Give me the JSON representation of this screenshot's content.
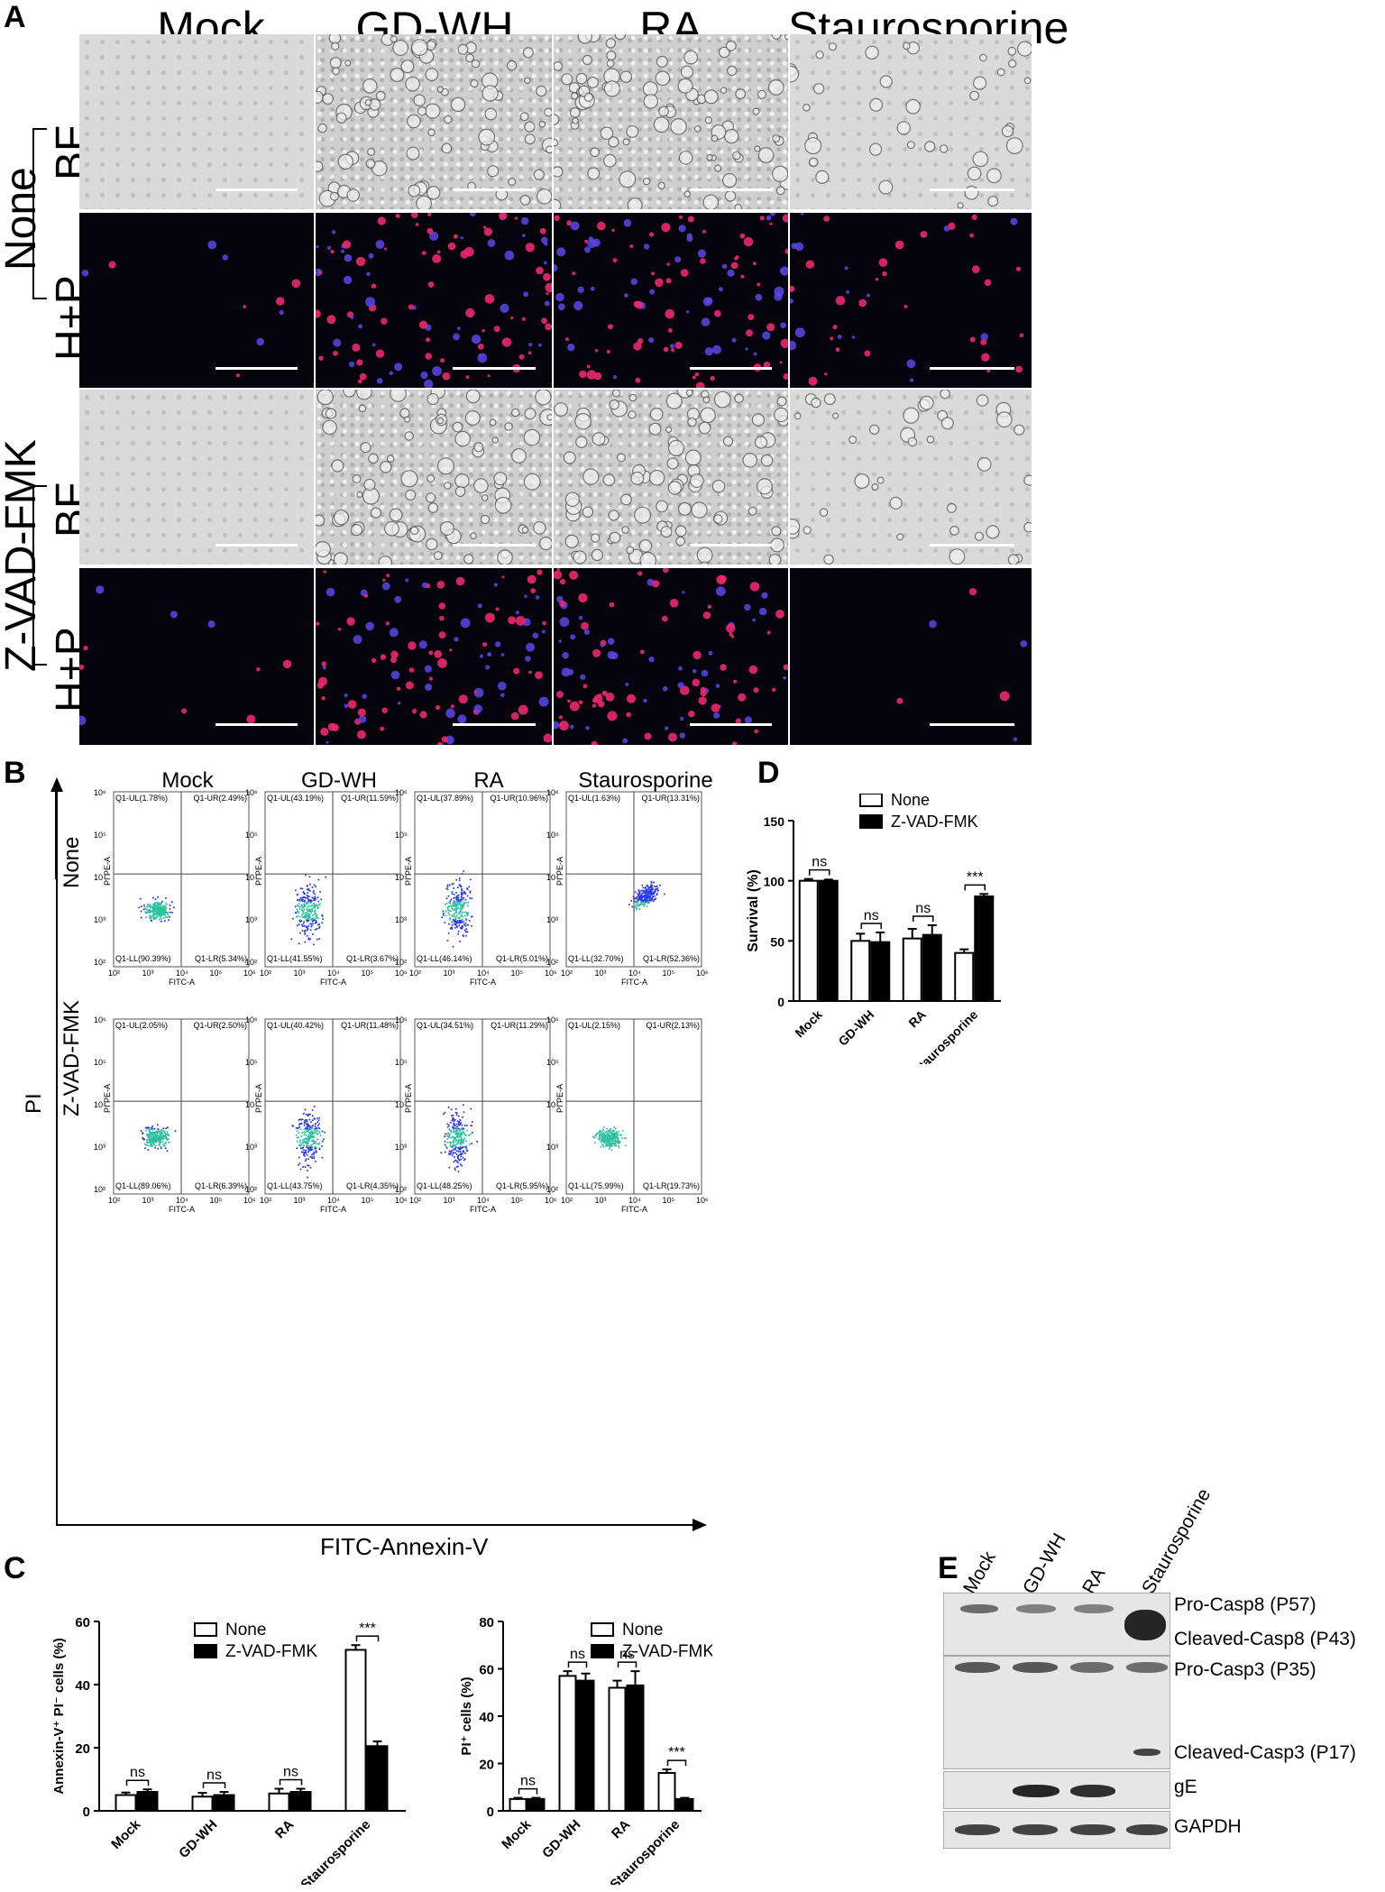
{
  "panel_a": {
    "label": "A",
    "columns": [
      "Mock",
      "GD-WH",
      "RA",
      "Staurosporine"
    ],
    "groups": [
      "None",
      "Z-VAD-FMK"
    ],
    "rows": [
      "BF",
      "H+P",
      "BF",
      "H+P"
    ]
  },
  "panel_b": {
    "label": "B",
    "columns": [
      "Mock",
      "GD-WH",
      "RA",
      "Staurosporine"
    ],
    "rows": [
      "None",
      "Z-VAD-FMK"
    ],
    "y_axis": "PI",
    "x_axis": "FITC-Annexin-V",
    "plot_xlabel": "FITC-A",
    "plot_ylabel": "PI PE-A",
    "x_ticks": [
      "10²",
      "10³",
      "10⁴",
      "10⁵",
      "10⁶"
    ],
    "y_ticks": [
      "10⁶",
      "10⁵",
      "10⁴",
      "10³",
      "10²"
    ],
    "quadrants": [
      [
        {
          "ul": "Q1-UL(1.78%)",
          "ur": "Q1-UR(2.49%)",
          "ll": "Q1-LL(90.39%)",
          "lr": "Q1-LR(5.34%)"
        },
        {
          "ul": "Q1-UL(43.19%)",
          "ur": "Q1-UR(11.59%)",
          "ll": "Q1-LL(41.55%)",
          "lr": "Q1-LR(3.67%)"
        },
        {
          "ul": "Q1-UL(37.89%)",
          "ur": "Q1-UR(10.96%)",
          "ll": "Q1-LL(46.14%)",
          "lr": "Q1-LR(5.01%)"
        },
        {
          "ul": "Q1-UL(1.63%)",
          "ur": "Q1-UR(13.31%)",
          "ll": "Q1-LL(32.70%)",
          "lr": "Q1-LR(52.36%)"
        }
      ],
      [
        {
          "ul": "Q1-UL(2.05%)",
          "ur": "Q1-UR(2.50%)",
          "ll": "Q1-LL(89.06%)",
          "lr": "Q1-LR(6.39%)"
        },
        {
          "ul": "Q1-UL(40.42%)",
          "ur": "Q1-UR(11.48%)",
          "ll": "Q1-LL(43.75%)",
          "lr": "Q1-LR(4.35%)"
        },
        {
          "ul": "Q1-UL(34.51%)",
          "ur": "Q1-UR(11.29%)",
          "ll": "Q1-LL(48.25%)",
          "lr": "Q1-LR(5.95%)"
        },
        {
          "ul": "Q1-UL(2.15%)",
          "ur": "Q1-UR(2.13%)",
          "ll": "Q1-LL(75.99%)",
          "lr": "Q1-LR(19.73%)"
        }
      ]
    ]
  },
  "panel_c": {
    "label": "C"
  },
  "panel_d": {
    "label": "D"
  },
  "panel_e": {
    "label": "E",
    "lanes": [
      "Mock",
      "GD-WH",
      "RA",
      "Staurosporine"
    ],
    "bands": [
      "Pro-Casp8 (P57)",
      "Cleaved-Casp8 (P43)",
      "Pro-Casp3 (P35)",
      "Cleaved-Casp3 (P17)",
      "gE",
      "GAPDH"
    ]
  },
  "chart_data": [
    {
      "id": "C-left",
      "type": "bar",
      "categories": [
        "Mock",
        "GD-WH",
        "RA",
        "Staurosporine"
      ],
      "series": [
        {
          "name": "None",
          "values": [
            5,
            4.5,
            5.5,
            51
          ],
          "errors": [
            0.8,
            1.2,
            1.5,
            1.5
          ]
        },
        {
          "name": "Z-VAD-FMK",
          "values": [
            6,
            5,
            6,
            20.5
          ],
          "errors": [
            0.8,
            1,
            1,
            1.5
          ]
        }
      ],
      "ylabel": "Annexin-V⁺ PI⁻ cells (%)",
      "ylim": [
        0,
        60
      ],
      "yticks": [
        "0",
        "20",
        "40",
        "60"
      ],
      "significance": [
        "ns",
        "ns",
        "ns",
        "***"
      ],
      "legend": "top-left"
    },
    {
      "id": "C-right",
      "type": "bar",
      "categories": [
        "Mock",
        "GD-WH",
        "RA",
        "Staurosporine"
      ],
      "series": [
        {
          "name": "None",
          "values": [
            5,
            57,
            52,
            16
          ],
          "errors": [
            0.5,
            2,
            3,
            1.5
          ]
        },
        {
          "name": "Z-VAD-FMK",
          "values": [
            5,
            55,
            53,
            5
          ],
          "errors": [
            0.5,
            3,
            6,
            0.5
          ]
        }
      ],
      "ylabel": "PI⁺ cells (%)",
      "ylim": [
        0,
        80
      ],
      "yticks": [
        "0",
        "20",
        "40",
        "60",
        "80"
      ],
      "significance": [
        "ns",
        "ns",
        "ns",
        "***"
      ],
      "legend": "top-right"
    },
    {
      "id": "D",
      "type": "bar",
      "categories": [
        "Mock",
        "GD-WH",
        "RA",
        "Staurosporine"
      ],
      "series": [
        {
          "name": "None",
          "values": [
            100,
            50,
            52,
            40
          ],
          "errors": [
            1.5,
            6,
            8,
            3
          ]
        },
        {
          "name": "Z-VAD-FMK",
          "values": [
            100,
            49,
            55,
            87
          ],
          "errors": [
            1,
            8,
            8,
            2
          ]
        }
      ],
      "ylabel": "Survival (%)",
      "ylim": [
        0,
        150
      ],
      "yticks": [
        "0",
        "50",
        "100",
        "150"
      ],
      "significance": [
        "ns",
        "ns",
        "ns",
        "***"
      ],
      "legend": "top-right"
    }
  ]
}
